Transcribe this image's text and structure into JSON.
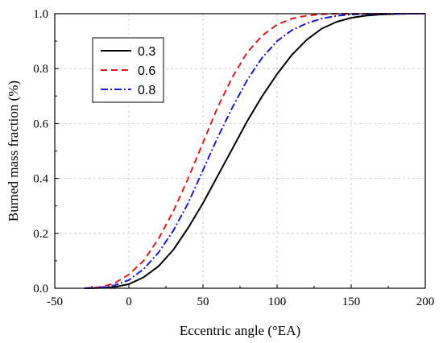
{
  "chart_data": {
    "type": "line",
    "title": "",
    "xlabel": "Eccentric angle (°EA)",
    "ylabel": "Burned mass fraction (%)",
    "xlim": [
      -50,
      200
    ],
    "ylim": [
      0.0,
      1.0
    ],
    "x_ticks": [
      "-50",
      "0",
      "50",
      "100",
      "150",
      "200"
    ],
    "y_ticks": [
      "0.0",
      "0.2",
      "0.4",
      "0.6",
      "0.8",
      "1.0"
    ],
    "grid": true,
    "legend_position": "top-left",
    "series": [
      {
        "name": "0.3",
        "color": "#000000",
        "dash": "solid",
        "x": [
          -30,
          -20,
          -10,
          0,
          10,
          20,
          30,
          40,
          50,
          60,
          70,
          80,
          90,
          100,
          110,
          120,
          130,
          140,
          150,
          160,
          170,
          180,
          190,
          200
        ],
        "y": [
          0.0,
          0.001,
          0.004,
          0.015,
          0.04,
          0.08,
          0.14,
          0.22,
          0.31,
          0.41,
          0.51,
          0.61,
          0.7,
          0.78,
          0.85,
          0.905,
          0.945,
          0.97,
          0.985,
          0.993,
          0.997,
          0.999,
          1.0,
          1.0
        ]
      },
      {
        "name": "0.6",
        "color": "#e3191c",
        "dash": "dashed",
        "x": [
          -30,
          -20,
          -10,
          0,
          10,
          20,
          30,
          40,
          50,
          60,
          70,
          80,
          90,
          100,
          110,
          120,
          130,
          140,
          150,
          200
        ],
        "y": [
          0.0,
          0.004,
          0.017,
          0.05,
          0.1,
          0.18,
          0.28,
          0.4,
          0.53,
          0.66,
          0.77,
          0.86,
          0.92,
          0.96,
          0.982,
          0.993,
          0.998,
          1.0,
          1.0,
          1.0
        ]
      },
      {
        "name": "0.8",
        "color": "#1a1ad6",
        "dash": "dash-dot",
        "x": [
          -30,
          -20,
          -10,
          0,
          10,
          20,
          30,
          40,
          50,
          60,
          70,
          80,
          90,
          100,
          110,
          120,
          130,
          140,
          150,
          160,
          170,
          200
        ],
        "y": [
          0.0,
          0.002,
          0.01,
          0.03,
          0.07,
          0.13,
          0.21,
          0.31,
          0.43,
          0.55,
          0.66,
          0.76,
          0.84,
          0.9,
          0.94,
          0.965,
          0.982,
          0.992,
          0.997,
          0.999,
          1.0,
          1.0
        ]
      }
    ]
  }
}
